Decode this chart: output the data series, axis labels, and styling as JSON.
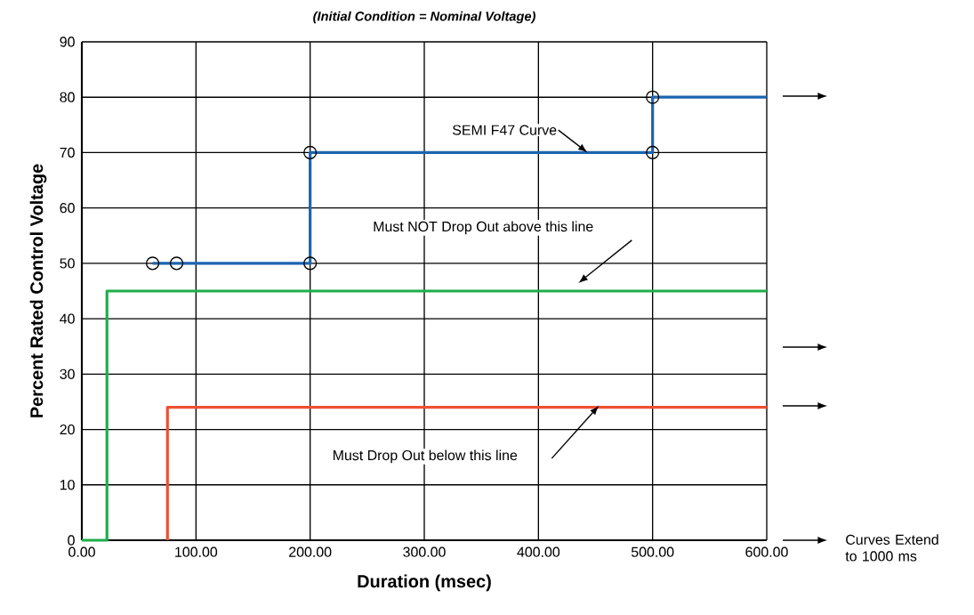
{
  "chart_data": {
    "type": "line",
    "title": "(Initial Condition = Nominal Voltage)",
    "xlabel": "Duration (msec)",
    "ylabel": "Percent Rated Control Voltage",
    "xlim": [
      0,
      600
    ],
    "ylim": [
      0,
      90
    ],
    "xticks": [
      {
        "value": 0,
        "label": "0.00"
      },
      {
        "value": 100,
        "label": "100.00"
      },
      {
        "value": 200,
        "label": "200.00"
      },
      {
        "value": 300,
        "label": "300.00"
      },
      {
        "value": 400,
        "label": "400.00"
      },
      {
        "value": 500,
        "label": "500.00"
      },
      {
        "value": 600,
        "label": "600.00"
      }
    ],
    "yticks": [
      0,
      10,
      20,
      30,
      40,
      50,
      60,
      70,
      80,
      90
    ],
    "grid": true,
    "marker": "none",
    "series": [
      {
        "color": "#1d64b0",
        "x": [
          62,
          200,
          200,
          500,
          500,
          600
        ],
        "values": [
          50,
          50,
          70,
          70,
          80,
          80
        ]
      },
      {
        "color": "#1fae4b",
        "x": [
          0,
          22,
          22,
          600
        ],
        "values": [
          0,
          0,
          45,
          45
        ]
      },
      {
        "color": "#ee5033",
        "x": [
          75,
          75,
          600
        ],
        "values": [
          0,
          24,
          24
        ]
      },
      {
        "type": "scatter",
        "marker": "circle",
        "color": "#000000",
        "x": [
          62,
          83,
          200,
          200,
          500,
          500
        ],
        "values": [
          50,
          50,
          50,
          70,
          70,
          80
        ]
      }
    ],
    "annotations": [
      {
        "text": "SEMI F47 Curve",
        "x": 443,
        "y": 70
      },
      "Must NOT Drop Out above this line",
      "Must Drop Out below this line",
      "Curves Extend to 1000 ms"
    ]
  }
}
